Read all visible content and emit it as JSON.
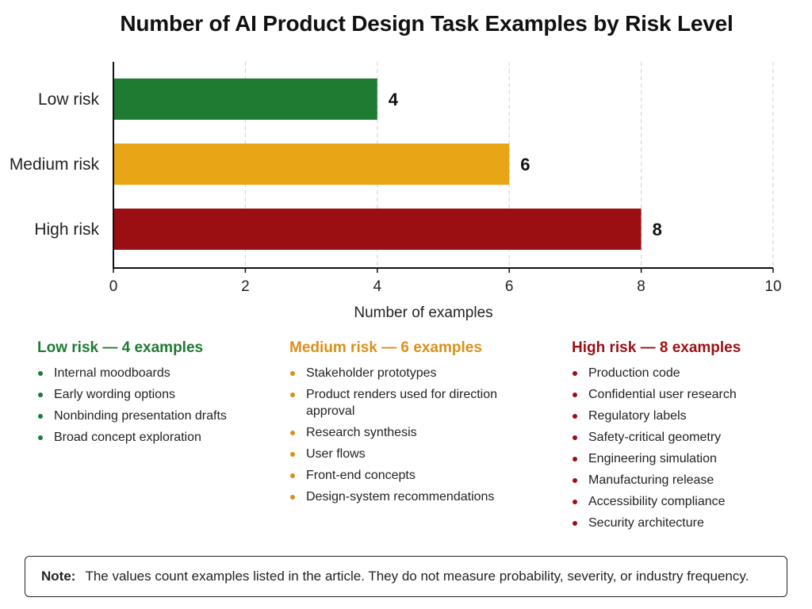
{
  "chart_data": {
    "type": "bar",
    "orientation": "horizontal",
    "title": "Number of AI Product Design Task Examples by Risk Level",
    "categories": [
      "Low risk",
      "Medium risk",
      "High risk"
    ],
    "values": [
      4,
      6,
      8
    ],
    "colors": [
      "#1e7b32",
      "#e8a617",
      "#9b0f13"
    ],
    "xlabel": "Number of examples",
    "ylabel": "",
    "xlim": [
      0,
      10
    ],
    "xticks": [
      0,
      2,
      4,
      6,
      8,
      10
    ],
    "grid": "vertical dashed",
    "legend": "none"
  },
  "groups": [
    {
      "heading": "Low risk — 4 examples",
      "color": "#1e7b32",
      "items": [
        "Internal moodboards",
        "Early wording options",
        "Nonbinding presentation drafts",
        "Broad concept exploration"
      ]
    },
    {
      "heading": "Medium risk — 6 examples",
      "color": "#d9901a",
      "items": [
        "Stakeholder prototypes",
        "Product renders used for direction approval",
        "Research synthesis",
        "User flows",
        "Front-end concepts",
        "Design-system recommendations"
      ]
    },
    {
      "heading": "High risk — 8 examples",
      "color": "#9b0f13",
      "items": [
        "Production code",
        "Confidential user research",
        "Regulatory labels",
        "Safety-critical geometry",
        "Engineering simulation",
        "Manufacturing release",
        "Accessibility compliance",
        "Security architecture"
      ]
    }
  ],
  "note": {
    "label": "Note:",
    "text": "The values count examples listed in the article. They do not measure probability, severity, or industry frequency."
  }
}
